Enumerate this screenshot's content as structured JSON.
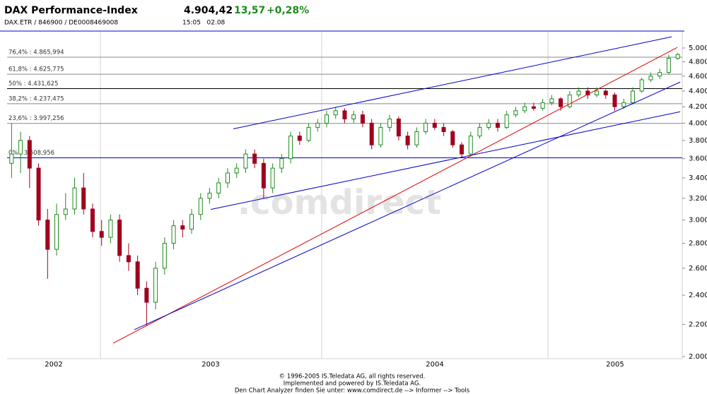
{
  "header": {
    "title": "DAX Performance-Index",
    "price": "4.904,42",
    "change": "13,57",
    "change_pct": "+0,28%",
    "identifiers": "DAX.ETR / 846900 / DE0008469008",
    "time": "15:05   02.08"
  },
  "chart_data": {
    "type": "candlestick",
    "log_scale": true,
    "watermark": ".comdirect",
    "up_color": "#1f8a1f",
    "down_color": "#a0001e",
    "ylim": [
      2000,
      5000
    ],
    "yticks": [
      {
        "value": 2000,
        "label": "2.000"
      },
      {
        "value": 2200,
        "label": "2.200"
      },
      {
        "value": 2400,
        "label": "2.400"
      },
      {
        "value": 2600,
        "label": "2.600"
      },
      {
        "value": 2800,
        "label": "2.800"
      },
      {
        "value": 3000,
        "label": "3.000"
      },
      {
        "value": 3200,
        "label": "3.200"
      },
      {
        "value": 3400,
        "label": "3.400"
      },
      {
        "value": 3600,
        "label": "3.600"
      },
      {
        "value": 3800,
        "label": "3.800"
      },
      {
        "value": 4000,
        "label": "4.000"
      },
      {
        "value": 4200,
        "label": "4.200"
      },
      {
        "value": 4400,
        "label": "4.400"
      },
      {
        "value": 4600,
        "label": "4.600"
      },
      {
        "value": 4800,
        "label": "4.800"
      },
      {
        "value": 5000,
        "label": "5.000"
      }
    ],
    "period_labels": [
      "2002",
      "2003",
      "2004",
      "2005"
    ],
    "open": [
      3550,
      3650,
      3800,
      3500,
      3000,
      2750,
      3050,
      3100,
      3300,
      3100,
      2900,
      2850,
      3000,
      2700,
      2650,
      2450,
      2350,
      2600,
      2800,
      2950,
      2920,
      3050,
      3200,
      3250,
      3350,
      3450,
      3500,
      3650,
      3550,
      3300,
      3500,
      3600,
      3850,
      3800,
      3950,
      4000,
      4100,
      4150,
      4050,
      4100,
      4000,
      3750,
      3950,
      4050,
      3850,
      3750,
      3900,
      4000,
      3950,
      3900,
      3750,
      3650,
      3850,
      3950,
      4000,
      3950,
      4100,
      4150,
      4200,
      4180,
      4250,
      4300,
      4200,
      4350,
      4400,
      4350,
      4400,
      4350,
      4200,
      4250,
      4400,
      4550,
      4600,
      4650,
      4850
    ],
    "high": [
      4000,
      3900,
      3850,
      3550,
      3100,
      3150,
      3250,
      3400,
      3450,
      3150,
      3000,
      3050,
      3050,
      2800,
      2700,
      2500,
      2650,
      2850,
      3000,
      3000,
      3100,
      3250,
      3300,
      3400,
      3500,
      3550,
      3700,
      3700,
      3600,
      3550,
      3650,
      3900,
      3900,
      4000,
      4050,
      4150,
      4200,
      4180,
      4150,
      4150,
      4050,
      4000,
      4100,
      4080,
      3900,
      3950,
      4050,
      4050,
      4000,
      3920,
      3780,
      3900,
      4000,
      4050,
      4050,
      4150,
      4200,
      4250,
      4250,
      4300,
      4350,
      4320,
      4400,
      4450,
      4450,
      4450,
      4420,
      4380,
      4300,
      4450,
      4580,
      4650,
      4700,
      4900,
      4930
    ],
    "low": [
      3400,
      3450,
      3300,
      2950,
      2520,
      2700,
      3000,
      3050,
      3050,
      2850,
      2780,
      2800,
      2650,
      2580,
      2400,
      2190,
      2300,
      2550,
      2750,
      2850,
      2880,
      3000,
      3150,
      3200,
      3300,
      3400,
      3450,
      3500,
      3200,
      3250,
      3450,
      3550,
      3750,
      3780,
      3900,
      3950,
      4050,
      4000,
      4000,
      3950,
      3700,
      3720,
      3900,
      3800,
      3700,
      3720,
      3870,
      3920,
      3850,
      3720,
      3610,
      3620,
      3820,
      3920,
      3900,
      3930,
      4070,
      4120,
      4150,
      4150,
      4220,
      4150,
      4180,
      4320,
      4300,
      4320,
      4300,
      4150,
      4170,
      4230,
      4380,
      4520,
      4560,
      4620,
      4830
    ],
    "close": [
      3650,
      3800,
      3500,
      3000,
      2750,
      3050,
      3100,
      3300,
      3100,
      2900,
      2850,
      3000,
      2700,
      2650,
      2450,
      2350,
      2600,
      2800,
      2950,
      2920,
      3050,
      3200,
      3250,
      3350,
      3450,
      3500,
      3650,
      3550,
      3300,
      3500,
      3600,
      3850,
      3800,
      3950,
      4000,
      4100,
      4150,
      4050,
      4100,
      4000,
      3750,
      3950,
      4050,
      3850,
      3750,
      3900,
      4000,
      3950,
      3900,
      3750,
      3650,
      3850,
      3950,
      4000,
      3950,
      4100,
      4150,
      4200,
      4180,
      4250,
      4300,
      4200,
      4350,
      4400,
      4350,
      4400,
      4350,
      4200,
      4250,
      4400,
      4550,
      4600,
      4650,
      4850,
      4904.42
    ],
    "fib_levels": [
      {
        "value": 4865.994,
        "label": "76,4% : 4.865,994",
        "color": "#888888"
      },
      {
        "value": 4625.775,
        "label": "61,8% : 4.625,775",
        "color": "#888888"
      },
      {
        "value": 4431.625,
        "label": "50% : 4.431,625",
        "color": "#000000"
      },
      {
        "value": 4237.475,
        "label": "38,2% : 4.237,475",
        "color": "#888888"
      },
      {
        "value": 3997.256,
        "label": "23,6% : 3.997,256",
        "color": "#888888"
      },
      {
        "value": 3608.956,
        "label": "0% : 3.608,956",
        "color": "#0000cc"
      }
    ],
    "trend_lines": [
      {
        "x": [
          24.63,
          73.32
        ],
        "values": [
          3933,
          5169
        ],
        "color": "#0000cc"
      },
      {
        "x": [
          11.28,
          73.95
        ],
        "values": [
          2081,
          5008
        ],
        "color": "#dd0000"
      },
      {
        "x": [
          13.64,
          74.27
        ],
        "values": [
          2166,
          4519
        ],
        "color": "#0000cc"
      },
      {
        "x": [
          22.12,
          74.27
        ],
        "values": [
          3096,
          4138
        ],
        "color": "#0000cc"
      }
    ]
  },
  "footer": {
    "lines": [
      "© 1996-2005 IS.Teledata AG, all rights reserved.",
      "Implemented and powered by IS.Teledata AG.",
      "Den Chart Analyzer finden Sie unter: www.comdirect.de --> Informer --> Tools"
    ]
  }
}
